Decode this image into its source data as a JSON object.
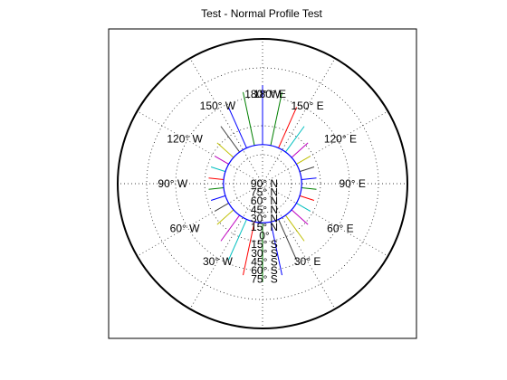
{
  "chart_data": {
    "type": "polar-line",
    "title": "Test - Normal Profile Test",
    "rings": 4,
    "spokes_deg_interval": 30,
    "inner_circle_color": "#0000ff",
    "series_colors": [
      "#0000ff",
      "#008000",
      "#ff0000",
      "#00bfbf",
      "#bf00bf",
      "#bfbf00",
      "#404040"
    ],
    "lines": [
      {
        "angle_deg": -90,
        "r_start": 0.27,
        "r_end": 1.0,
        "color_index": 0
      },
      {
        "angle_deg": -78,
        "r_start": 0.27,
        "r_end": 0.95,
        "color_index": 1
      },
      {
        "angle_deg": -66,
        "r_start": 0.27,
        "r_end": 0.85,
        "color_index": 2
      },
      {
        "angle_deg": -54,
        "r_start": 0.27,
        "r_end": 0.72,
        "color_index": 3
      },
      {
        "angle_deg": -42,
        "r_start": 0.27,
        "r_end": 0.62,
        "color_index": 4
      },
      {
        "angle_deg": -30,
        "r_start": 0.27,
        "r_end": 0.56,
        "color_index": 5
      },
      {
        "angle_deg": -18,
        "r_start": 0.27,
        "r_end": 0.55,
        "color_index": 6
      },
      {
        "angle_deg": -6,
        "r_start": 0.27,
        "r_end": 0.55,
        "color_index": 0
      },
      {
        "angle_deg": 6,
        "r_start": 0.27,
        "r_end": 0.55,
        "color_index": 1
      },
      {
        "angle_deg": 18,
        "r_start": 0.27,
        "r_end": 0.55,
        "color_index": 2
      },
      {
        "angle_deg": 30,
        "r_start": 0.27,
        "r_end": 0.56,
        "color_index": 3
      },
      {
        "angle_deg": 42,
        "r_start": 0.27,
        "r_end": 0.62,
        "color_index": 4
      },
      {
        "angle_deg": 54,
        "r_start": 0.27,
        "r_end": 0.72,
        "color_index": 5
      },
      {
        "angle_deg": 66,
        "r_start": 0.27,
        "r_end": 0.85,
        "color_index": 6
      },
      {
        "angle_deg": 78,
        "r_start": 0.27,
        "r_end": 0.95,
        "color_index": 0
      },
      {
        "angle_deg": 90,
        "r_start": 0.27,
        "r_end": 1.0,
        "color_index": 1
      },
      {
        "angle_deg": 102,
        "r_start": 0.27,
        "r_end": 0.95,
        "color_index": 2
      },
      {
        "angle_deg": 114,
        "r_start": 0.27,
        "r_end": 0.85,
        "color_index": 3
      },
      {
        "angle_deg": 126,
        "r_start": 0.27,
        "r_end": 0.72,
        "color_index": 4
      },
      {
        "angle_deg": 138,
        "r_start": 0.27,
        "r_end": 0.62,
        "color_index": 5
      },
      {
        "angle_deg": 150,
        "r_start": 0.27,
        "r_end": 0.56,
        "color_index": 6
      },
      {
        "angle_deg": 162,
        "r_start": 0.27,
        "r_end": 0.55,
        "color_index": 0
      },
      {
        "angle_deg": 174,
        "r_start": 0.27,
        "r_end": 0.55,
        "color_index": 1
      },
      {
        "angle_deg": 186,
        "r_start": 0.27,
        "r_end": 0.55,
        "color_index": 2
      },
      {
        "angle_deg": 198,
        "r_start": 0.27,
        "r_end": 0.55,
        "color_index": 3
      },
      {
        "angle_deg": 210,
        "r_start": 0.27,
        "r_end": 0.56,
        "color_index": 4
      },
      {
        "angle_deg": 222,
        "r_start": 0.27,
        "r_end": 0.62,
        "color_index": 5
      },
      {
        "angle_deg": 234,
        "r_start": 0.27,
        "r_end": 0.72,
        "color_index": 6
      },
      {
        "angle_deg": 246,
        "r_start": 0.27,
        "r_end": 0.85,
        "color_index": 0
      },
      {
        "angle_deg": 258,
        "r_start": 0.27,
        "r_end": 0.95,
        "color_index": 1
      }
    ],
    "longitude_labels": [
      {
        "text": "180°  W",
        "angle_deg": -90,
        "r": 0.62
      },
      {
        "text": "180°  E",
        "angle_deg": -90,
        "r": 0.62,
        "offset": "right"
      },
      {
        "text": "150°  W",
        "angle_deg": -120,
        "r": 0.62
      },
      {
        "text": "150°  E",
        "angle_deg": -60,
        "r": 0.62
      },
      {
        "text": "120°  W",
        "angle_deg": -150,
        "r": 0.62
      },
      {
        "text": "120°  E",
        "angle_deg": -30,
        "r": 0.62
      },
      {
        "text": "90°  W",
        "angle_deg": 180,
        "r": 0.62
      },
      {
        "text": "90°  E",
        "angle_deg": 0,
        "r": 0.62
      },
      {
        "text": "60°  W",
        "angle_deg": 150,
        "r": 0.62
      },
      {
        "text": "60°  E",
        "angle_deg": 30,
        "r": 0.62
      },
      {
        "text": "30°  W",
        "angle_deg": 120,
        "r": 0.62
      },
      {
        "text": "30°  E",
        "angle_deg": 60,
        "r": 0.62
      }
    ],
    "latitude_labels": [
      {
        "text": "90°  N",
        "r": 0.0
      },
      {
        "text": "75°  N",
        "r": 0.1
      },
      {
        "text": "60°  N",
        "r": 0.2
      },
      {
        "text": "45°  N",
        "r": 0.3
      },
      {
        "text": "30°  N",
        "r": 0.4
      },
      {
        "text": "15°  N",
        "r": 0.5
      },
      {
        "text": "0°",
        "r": 0.6
      },
      {
        "text": "15°  S",
        "r": 0.7
      },
      {
        "text": "30°  S",
        "r": 0.8
      },
      {
        "text": "45°  S",
        "r": 0.9
      },
      {
        "text": "60°  S",
        "r": 1.0
      },
      {
        "text": "75°  S",
        "r": 1.1
      }
    ],
    "grid": true
  }
}
